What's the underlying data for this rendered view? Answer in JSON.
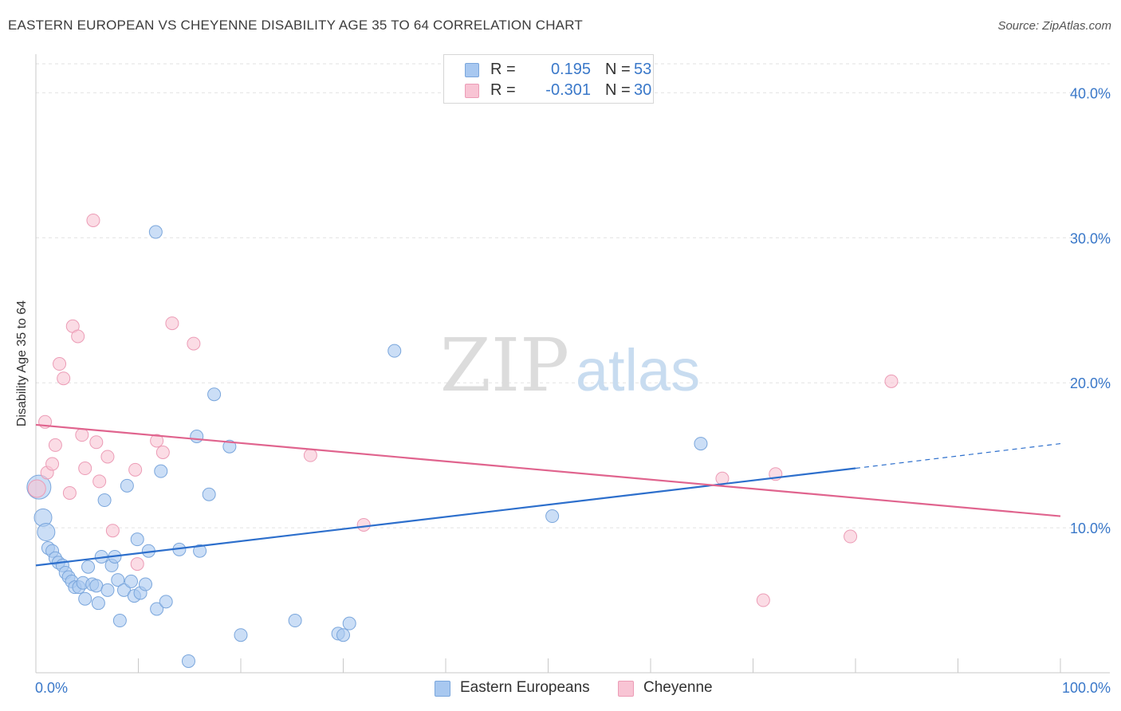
{
  "chart_data": {
    "type": "scatter",
    "title": "EASTERN EUROPEAN VS CHEYENNE DISABILITY AGE 35 TO 64 CORRELATION CHART",
    "source": "Source: ZipAtlas.com",
    "watermark": {
      "zip": "ZIP",
      "atlas": "atlas"
    },
    "ylabel": "Disability Age 35 to 64",
    "xlim": [
      0,
      100
    ],
    "ylim": [
      0,
      42
    ],
    "x_tick_labels": [
      "0.0%",
      "100.0%"
    ],
    "y_ticks": [
      10,
      20,
      30,
      40
    ],
    "y_tick_labels": [
      "10.0%",
      "20.0%",
      "30.0%",
      "40.0%"
    ],
    "legend": {
      "rows": [
        {
          "r_label": "R =",
          "r_value": "0.195",
          "n_label": "N =",
          "n_value": "53"
        },
        {
          "r_label": "R =",
          "r_value": "-0.301",
          "n_label": "N =",
          "n_value": "30"
        }
      ]
    },
    "series": [
      {
        "name": "Eastern Europeans",
        "color": "#a8c8f0",
        "edge": "#7aa6dc",
        "line_color": "#2d6fcc",
        "trend": {
          "x0": 0,
          "y0": 7.4,
          "x1": 80,
          "y1": 14.1,
          "dash_to_x": 100,
          "dash_to_y": 15.8
        },
        "points": [
          {
            "x": 0.3,
            "y": 12.8,
            "s": 3
          },
          {
            "x": 0.7,
            "y": 10.7,
            "s": 2
          },
          {
            "x": 1.0,
            "y": 9.7,
            "s": 2
          },
          {
            "x": 1.2,
            "y": 8.6,
            "s": 1
          },
          {
            "x": 1.6,
            "y": 8.4,
            "s": 1
          },
          {
            "x": 1.9,
            "y": 7.9,
            "s": 1
          },
          {
            "x": 2.2,
            "y": 7.6,
            "s": 1
          },
          {
            "x": 2.6,
            "y": 7.4,
            "s": 1
          },
          {
            "x": 2.9,
            "y": 6.9,
            "s": 1
          },
          {
            "x": 3.2,
            "y": 6.6,
            "s": 1
          },
          {
            "x": 3.5,
            "y": 6.3,
            "s": 1
          },
          {
            "x": 3.8,
            "y": 5.9,
            "s": 1
          },
          {
            "x": 4.2,
            "y": 5.9,
            "s": 1
          },
          {
            "x": 4.6,
            "y": 6.2,
            "s": 1
          },
          {
            "x": 4.8,
            "y": 5.1,
            "s": 1
          },
          {
            "x": 5.1,
            "y": 7.3,
            "s": 1
          },
          {
            "x": 5.5,
            "y": 6.1,
            "s": 1
          },
          {
            "x": 5.9,
            "y": 6.0,
            "s": 1
          },
          {
            "x": 6.1,
            "y": 4.8,
            "s": 1
          },
          {
            "x": 6.4,
            "y": 8.0,
            "s": 1
          },
          {
            "x": 6.7,
            "y": 11.9,
            "s": 1
          },
          {
            "x": 7.0,
            "y": 5.7,
            "s": 1
          },
          {
            "x": 7.4,
            "y": 7.4,
            "s": 1
          },
          {
            "x": 7.7,
            "y": 8.0,
            "s": 1
          },
          {
            "x": 8.0,
            "y": 6.4,
            "s": 1
          },
          {
            "x": 8.2,
            "y": 3.6,
            "s": 1
          },
          {
            "x": 8.6,
            "y": 5.7,
            "s": 1
          },
          {
            "x": 8.9,
            "y": 12.9,
            "s": 1
          },
          {
            "x": 9.3,
            "y": 6.3,
            "s": 1
          },
          {
            "x": 9.6,
            "y": 5.3,
            "s": 1
          },
          {
            "x": 9.9,
            "y": 9.2,
            "s": 1
          },
          {
            "x": 10.2,
            "y": 5.5,
            "s": 1
          },
          {
            "x": 10.7,
            "y": 6.1,
            "s": 1
          },
          {
            "x": 11.0,
            "y": 8.4,
            "s": 1
          },
          {
            "x": 11.7,
            "y": 30.4,
            "s": 1
          },
          {
            "x": 11.8,
            "y": 4.4,
            "s": 1
          },
          {
            "x": 12.2,
            "y": 13.9,
            "s": 1
          },
          {
            "x": 12.7,
            "y": 4.9,
            "s": 1
          },
          {
            "x": 14.0,
            "y": 8.5,
            "s": 1
          },
          {
            "x": 14.9,
            "y": 0.8,
            "s": 1
          },
          {
            "x": 15.7,
            "y": 16.3,
            "s": 1
          },
          {
            "x": 16.0,
            "y": 8.4,
            "s": 1
          },
          {
            "x": 16.9,
            "y": 12.3,
            "s": 1
          },
          {
            "x": 17.4,
            "y": 19.2,
            "s": 1
          },
          {
            "x": 18.9,
            "y": 15.6,
            "s": 1
          },
          {
            "x": 20.0,
            "y": 2.6,
            "s": 1
          },
          {
            "x": 25.3,
            "y": 3.6,
            "s": 1
          },
          {
            "x": 29.5,
            "y": 2.7,
            "s": 1
          },
          {
            "x": 30.0,
            "y": 2.6,
            "s": 1
          },
          {
            "x": 30.6,
            "y": 3.4,
            "s": 1
          },
          {
            "x": 35.0,
            "y": 22.2,
            "s": 1
          },
          {
            "x": 50.4,
            "y": 10.8,
            "s": 1
          },
          {
            "x": 64.9,
            "y": 15.8,
            "s": 1
          }
        ]
      },
      {
        "name": "Cheyenne",
        "color": "#f8c4d4",
        "edge": "#ec9cb6",
        "line_color": "#e0648e",
        "trend": {
          "x0": 0,
          "y0": 17.1,
          "x1": 100,
          "y1": 10.8
        },
        "points": [
          {
            "x": 0.1,
            "y": 12.7,
            "s": 2
          },
          {
            "x": 0.9,
            "y": 17.3,
            "s": 1
          },
          {
            "x": 1.1,
            "y": 13.8,
            "s": 1
          },
          {
            "x": 1.6,
            "y": 14.4,
            "s": 1
          },
          {
            "x": 1.9,
            "y": 15.7,
            "s": 1
          },
          {
            "x": 2.3,
            "y": 21.3,
            "s": 1
          },
          {
            "x": 2.7,
            "y": 20.3,
            "s": 1
          },
          {
            "x": 3.3,
            "y": 12.4,
            "s": 1
          },
          {
            "x": 3.6,
            "y": 23.9,
            "s": 1
          },
          {
            "x": 4.1,
            "y": 23.2,
            "s": 1
          },
          {
            "x": 4.5,
            "y": 16.4,
            "s": 1
          },
          {
            "x": 4.8,
            "y": 14.1,
            "s": 1
          },
          {
            "x": 5.6,
            "y": 31.2,
            "s": 1
          },
          {
            "x": 5.9,
            "y": 15.9,
            "s": 1
          },
          {
            "x": 6.2,
            "y": 13.2,
            "s": 1
          },
          {
            "x": 7.0,
            "y": 14.9,
            "s": 1
          },
          {
            "x": 7.5,
            "y": 9.8,
            "s": 1
          },
          {
            "x": 9.7,
            "y": 14.0,
            "s": 1
          },
          {
            "x": 9.9,
            "y": 7.5,
            "s": 1
          },
          {
            "x": 11.8,
            "y": 16.0,
            "s": 1
          },
          {
            "x": 12.4,
            "y": 15.2,
            "s": 1
          },
          {
            "x": 13.3,
            "y": 24.1,
            "s": 1
          },
          {
            "x": 15.4,
            "y": 22.7,
            "s": 1
          },
          {
            "x": 26.8,
            "y": 15.0,
            "s": 1
          },
          {
            "x": 32.0,
            "y": 10.2,
            "s": 1
          },
          {
            "x": 67.0,
            "y": 13.4,
            "s": 1
          },
          {
            "x": 71.0,
            "y": 5.0,
            "s": 1
          },
          {
            "x": 72.2,
            "y": 13.7,
            "s": 1
          },
          {
            "x": 79.5,
            "y": 9.4,
            "s": 1
          },
          {
            "x": 83.5,
            "y": 20.1,
            "s": 1
          }
        ]
      }
    ]
  }
}
